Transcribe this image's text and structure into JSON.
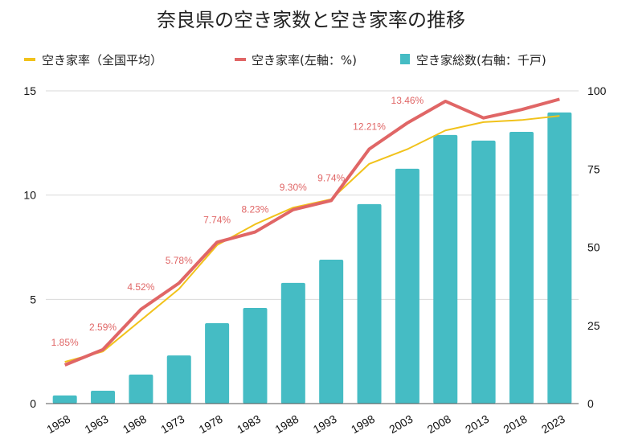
{
  "chart_data": {
    "type": "bar+line",
    "title": "奈良県の空き家数と空き家率の推移",
    "categories": [
      "1958",
      "1963",
      "1968",
      "1973",
      "1978",
      "1983",
      "1988",
      "1993",
      "1998",
      "2003",
      "2008",
      "2013",
      "2018",
      "2023"
    ],
    "legend": {
      "placement": "top",
      "entries": [
        "空き家率（全国平均）",
        "空き家率(左軸：%)",
        "空き家総数(右軸：千戸)"
      ]
    },
    "left_axis": {
      "ylim": [
        0,
        15
      ],
      "ticks": [
        "0",
        "5",
        "10",
        "15"
      ]
    },
    "right_axis": {
      "ylim": [
        0,
        100
      ],
      "ticks": [
        "0",
        "25",
        "50",
        "75",
        "100"
      ]
    },
    "grid": true,
    "series": [
      {
        "name": "空き家総数(右軸：千戸)",
        "type": "bar",
        "axis": "right",
        "color": "#45bcc4",
        "values": [
          2.6,
          4.1,
          9.3,
          15.4,
          25.7,
          30.6,
          38.6,
          46.0,
          63.8,
          75.1,
          85.9,
          84.1,
          86.9,
          93.1
        ]
      },
      {
        "name": "空き家率（全国平均）",
        "type": "line",
        "axis": "left",
        "color": "#f1c21b",
        "values": [
          2.0,
          2.5,
          4.0,
          5.5,
          7.6,
          8.6,
          9.4,
          9.8,
          11.5,
          12.2,
          13.1,
          13.5,
          13.6,
          13.8
        ]
      },
      {
        "name": "空き家率(左軸：%)",
        "type": "line",
        "axis": "left",
        "color": "#e06666",
        "values": [
          1.85,
          2.59,
          4.52,
          5.78,
          7.74,
          8.23,
          9.3,
          9.74,
          12.21,
          13.46,
          14.5,
          13.7,
          14.1,
          14.6
        ],
        "data_labels": [
          "1.85%",
          "2.59%",
          "4.52%",
          "5.78%",
          "7.74%",
          "8.23%",
          "9.30%",
          "9.74%",
          "12.21%",
          "13.46%",
          "",
          "",
          "",
          ""
        ]
      }
    ]
  }
}
